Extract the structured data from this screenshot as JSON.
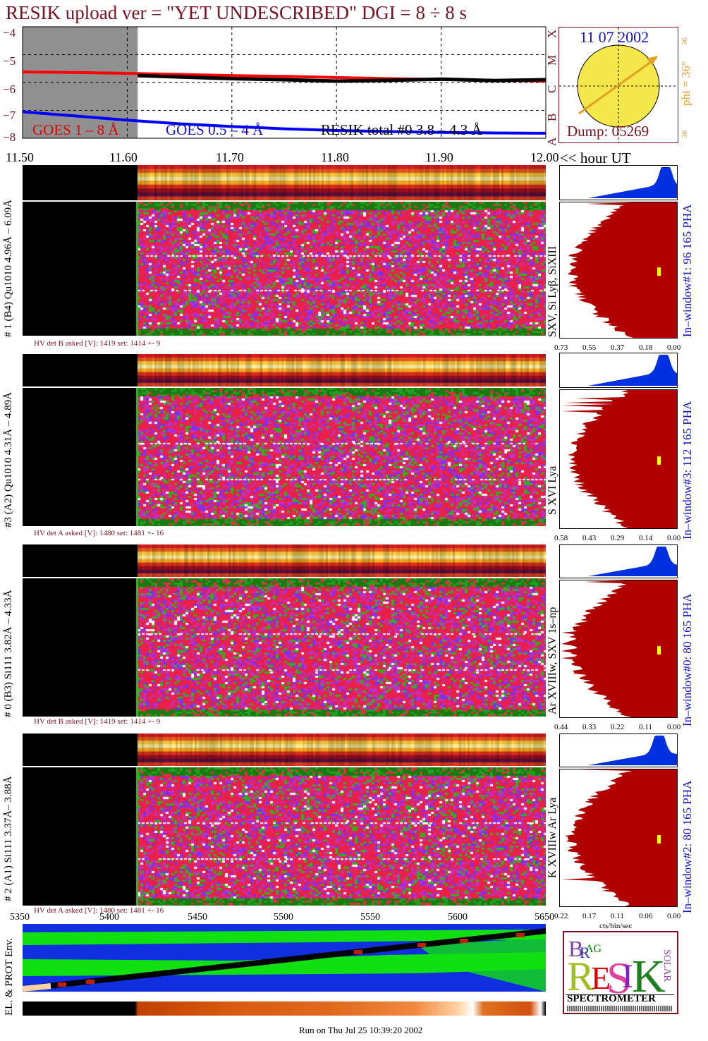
{
  "header": {
    "title": "RESIK upload ver = \"YET UNDESCRIBED\"  DGI =   8 ÷   8 s"
  },
  "goes": {
    "yaxis_ticks": [
      "−4",
      "−5",
      "−6",
      "−7",
      "−8"
    ],
    "class_labels": [
      "A",
      "B",
      "C",
      "M",
      "X"
    ],
    "legend_goes18": "GOES 1 – 8 Å",
    "legend_goes054": "GOES 0.5 – 4 Å",
    "legend_resik": "RESIK total #0  3.8 – 4.3 Å"
  },
  "sun": {
    "date": "11 07 2002",
    "phi_label": "phi = 36°",
    "tick_top": "36",
    "tick_bottom": "36",
    "dump": "Dump: 05269"
  },
  "time_axis": {
    "ticks": [
      "11.50",
      "11.60",
      "11.70",
      "11.80",
      "11.90",
      "12.00"
    ],
    "unit_label": "<< hour UT"
  },
  "channels": [
    {
      "ylabel": "# 1 (B4) Qu1010 4.96Å – 6.09Å",
      "lines": "SXV, Si Lyβ, SiXIII",
      "window": "In–window#1:   96 165  PHA",
      "hv": "HV det B asked [V]:  1419 set:  1414 +-  9",
      "xticks": [
        "0.73",
        "0.55",
        "0.37",
        "0.18",
        "0.00"
      ]
    },
    {
      "ylabel": "#3 (A2) Qu1010  4.31Å – 4.89Å",
      "lines": "S XVI Lya",
      "window": "In–window#3:  112 165  PHA",
      "hv": "HV det A asked [V]:  1480 set:  1481 +-  16",
      "xticks": [
        "0.58",
        "0.43",
        "0.29",
        "0.14",
        "0.00"
      ]
    },
    {
      "ylabel": "# 0 (B3) Si111  3.82Å – 4.33Å",
      "lines": "Ar XVIIIw,  SXV 1s–np",
      "window": "In–window#0:   80 165  PHA",
      "hv": "HV det B asked [V]:  1419 set:  1414 +-  9",
      "xticks": [
        "0.44",
        "0.33",
        "0.22",
        "0.11",
        "0.00"
      ]
    },
    {
      "ylabel": "# 2 (A1) Si111  3.37Å–  3.88Å",
      "lines": "K XVIIIw   Ar Lya",
      "window": "In–window#2:   80 165  PHA",
      "hv": "HV det A asked [V]:  1480 set:  1481 +-  16",
      "xticks": [
        "0.22",
        "0.17",
        "0.11",
        "0.06",
        "0.00"
      ]
    }
  ],
  "spec_xunit": "cts/bin/sec",
  "bottom_axis": {
    "ticks": [
      "5350",
      "5400",
      "5450",
      "5500",
      "5550",
      "5600",
      "5650"
    ]
  },
  "env_label": "EL. & PROT Env.",
  "logo": {
    "spectrometer": "SPECTROMETER"
  },
  "footer": "Run on Thu Jul 25 10:39:20 2002",
  "chart_data": {
    "type": "line",
    "x_range": [
      11.5,
      12.0
    ],
    "xlabel": "<< hour UT",
    "ylim": [
      -8,
      -4
    ],
    "series": [
      {
        "name": "GOES 1 – 8 Å",
        "color": "#ff0000",
        "x": [
          11.5,
          11.55,
          11.6,
          11.65,
          11.7,
          11.75,
          11.8,
          11.85,
          11.9,
          11.95,
          12.0
        ],
        "y": [
          -5.62,
          -5.64,
          -5.67,
          -5.71,
          -5.75,
          -5.78,
          -5.82,
          -5.86,
          -5.89,
          -5.92,
          -5.95
        ]
      },
      {
        "name": "GOES 0.5 – 4 Å",
        "color": "#0000ff",
        "x": [
          11.5,
          11.55,
          11.6,
          11.65,
          11.7,
          11.75,
          11.8,
          11.85,
          11.9,
          11.95,
          12.0
        ],
        "y": [
          -7.05,
          -7.2,
          -7.35,
          -7.48,
          -7.58,
          -7.66,
          -7.72,
          -7.76,
          -7.79,
          -7.81,
          -7.82
        ]
      },
      {
        "name": "RESIK total #0  3.8 – 4.3 Å",
        "color": "#000000",
        "x": [
          11.61,
          11.65,
          11.7,
          11.75,
          11.8,
          11.85,
          11.9,
          11.95,
          12.0
        ],
        "y": [
          -5.75,
          -5.8,
          -5.86,
          -5.9,
          -5.95,
          -5.92,
          -5.88,
          -5.93,
          -5.9
        ]
      }
    ]
  }
}
